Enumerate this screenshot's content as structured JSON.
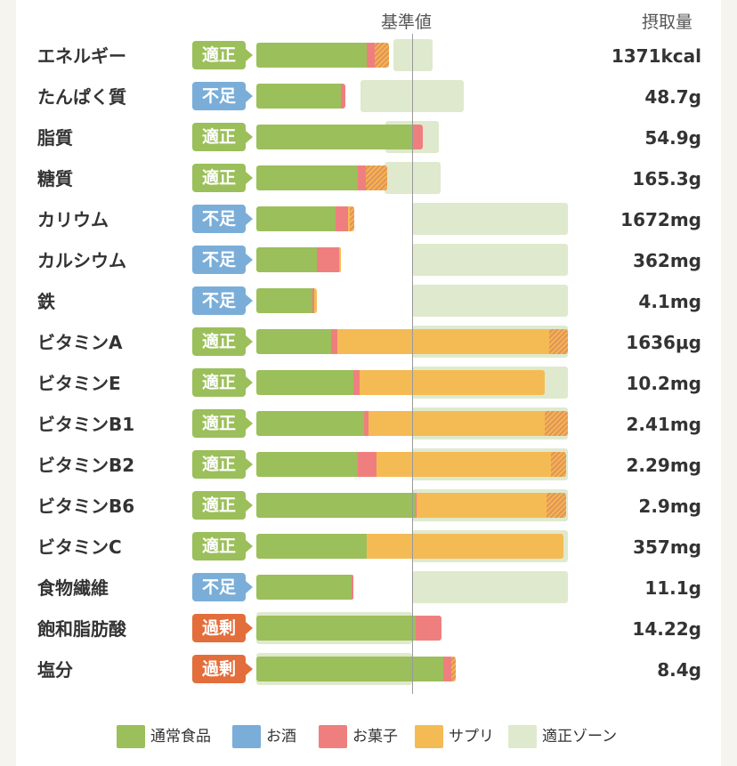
{
  "chart_data": {
    "type": "bar",
    "stacked": true,
    "orientation": "horizontal",
    "header": {
      "reference_label": "基準値",
      "intake_label": "摂取量"
    },
    "unit_note": "bars are normalized: 100 = 基準値",
    "x_range": [
      0,
      200
    ],
    "colors": {
      "regular_food": "#9bbf5a",
      "alcohol": "#7aaed9",
      "snacks": "#ef7f7f",
      "supplements": "#f4bb55",
      "proper_zone": "#dfe9cd",
      "badge_ok": "#9bbf5a",
      "badge_low": "#7aaed9",
      "badge_high": "#e36e3b"
    },
    "legend": [
      {
        "key": "regular_food",
        "label": "通常食品"
      },
      {
        "key": "alcohol",
        "label": "お酒"
      },
      {
        "key": "snacks",
        "label": "お菓子"
      },
      {
        "key": "supplements",
        "label": "サプリ"
      },
      {
        "key": "proper_zone",
        "label": "適正ゾーン"
      }
    ],
    "rows": [
      {
        "name": "エネルギー",
        "status": "適正",
        "status_type": "ok",
        "intake": "1371kcal",
        "zone": [
          -12,
          13
        ],
        "values": {
          "regular_food": 71,
          "snacks": 7,
          "supplements": 7
        },
        "striped_tail": 9
      },
      {
        "name": "たんぱく質",
        "status": "不足",
        "status_type": "low",
        "intake": "48.7g",
        "zone": [
          -33,
          33
        ],
        "values": {
          "regular_food": 54,
          "snacks": 3
        }
      },
      {
        "name": "脂質",
        "status": "適正",
        "status_type": "ok",
        "intake": "54.9g",
        "zone": [
          -17,
          17
        ],
        "values": {
          "regular_food": 100,
          "snacks": 7
        }
      },
      {
        "name": "糖質",
        "status": "適正",
        "status_type": "ok",
        "intake": "165.3g",
        "zone": [
          -18,
          18
        ],
        "values": {
          "regular_food": 65,
          "snacks": 11,
          "supplements": 8
        },
        "striped_tail": 14
      },
      {
        "name": "カリウム",
        "status": "不足",
        "status_type": "low",
        "intake": "1672mg",
        "zone": [
          0,
          100
        ],
        "values": {
          "regular_food": 51,
          "snacks": 8,
          "supplements": 4
        },
        "striped_tail": 3
      },
      {
        "name": "カルシウム",
        "status": "不足",
        "status_type": "low",
        "intake": "362mg",
        "zone": [
          0,
          100
        ],
        "values": {
          "regular_food": 39,
          "snacks": 14,
          "supplements": 1
        }
      },
      {
        "name": "鉄",
        "status": "不足",
        "status_type": "low",
        "intake": "4.1mg",
        "zone": [
          0,
          100
        ],
        "values": {
          "regular_food": 36,
          "snacks": 1,
          "supplements": 2
        }
      },
      {
        "name": "ビタミンA",
        "status": "適正",
        "status_type": "ok",
        "intake": "1636μg",
        "zone": [
          0,
          100
        ],
        "values": {
          "regular_food": 48,
          "snacks": 4,
          "supplements": 148
        },
        "striped_tail": 12
      },
      {
        "name": "ビタミンE",
        "status": "適正",
        "status_type": "ok",
        "intake": "10.2mg",
        "zone": [
          0,
          100
        ],
        "values": {
          "regular_food": 62,
          "snacks": 4,
          "supplements": 119
        }
      },
      {
        "name": "ビタミンB1",
        "status": "適正",
        "status_type": "ok",
        "intake": "2.41mg",
        "zone": [
          0,
          100
        ],
        "values": {
          "regular_food": 69,
          "snacks": 3,
          "supplements": 128
        },
        "striped_tail": 15
      },
      {
        "name": "ビタミンB2",
        "status": "適正",
        "status_type": "ok",
        "intake": "2.29mg",
        "zone": [
          0,
          100
        ],
        "values": {
          "regular_food": 65,
          "snacks": 12,
          "supplements": 122
        },
        "striped_tail": 10
      },
      {
        "name": "ビタミンB6",
        "status": "適正",
        "status_type": "ok",
        "intake": "2.9mg",
        "zone": [
          0,
          100
        ],
        "values": {
          "regular_food": 102,
          "snacks": 1,
          "supplements": 96
        },
        "striped_tail": 13
      },
      {
        "name": "ビタミンC",
        "status": "適正",
        "status_type": "ok",
        "intake": "357mg",
        "zone": [
          0,
          100
        ],
        "values": {
          "regular_food": 71,
          "supplements": 126
        }
      },
      {
        "name": "食物繊維",
        "status": "不足",
        "status_type": "low",
        "intake": "11.1g",
        "zone": [
          0,
          100
        ],
        "values": {
          "regular_food": 61,
          "snacks": 1
        }
      },
      {
        "name": "飽和脂肪酸",
        "status": "過剰",
        "status_type": "high",
        "intake": "14.22g",
        "zone": [
          -100,
          0
        ],
        "values": {
          "regular_food": 102,
          "snacks": 17
        }
      },
      {
        "name": "塩分",
        "status": "過剰",
        "status_type": "high",
        "intake": "8.4g",
        "zone": [
          -100,
          0
        ],
        "values": {
          "regular_food": 120,
          "snacks": 5,
          "supplements": 3
        },
        "striped_tail": 3
      }
    ]
  }
}
